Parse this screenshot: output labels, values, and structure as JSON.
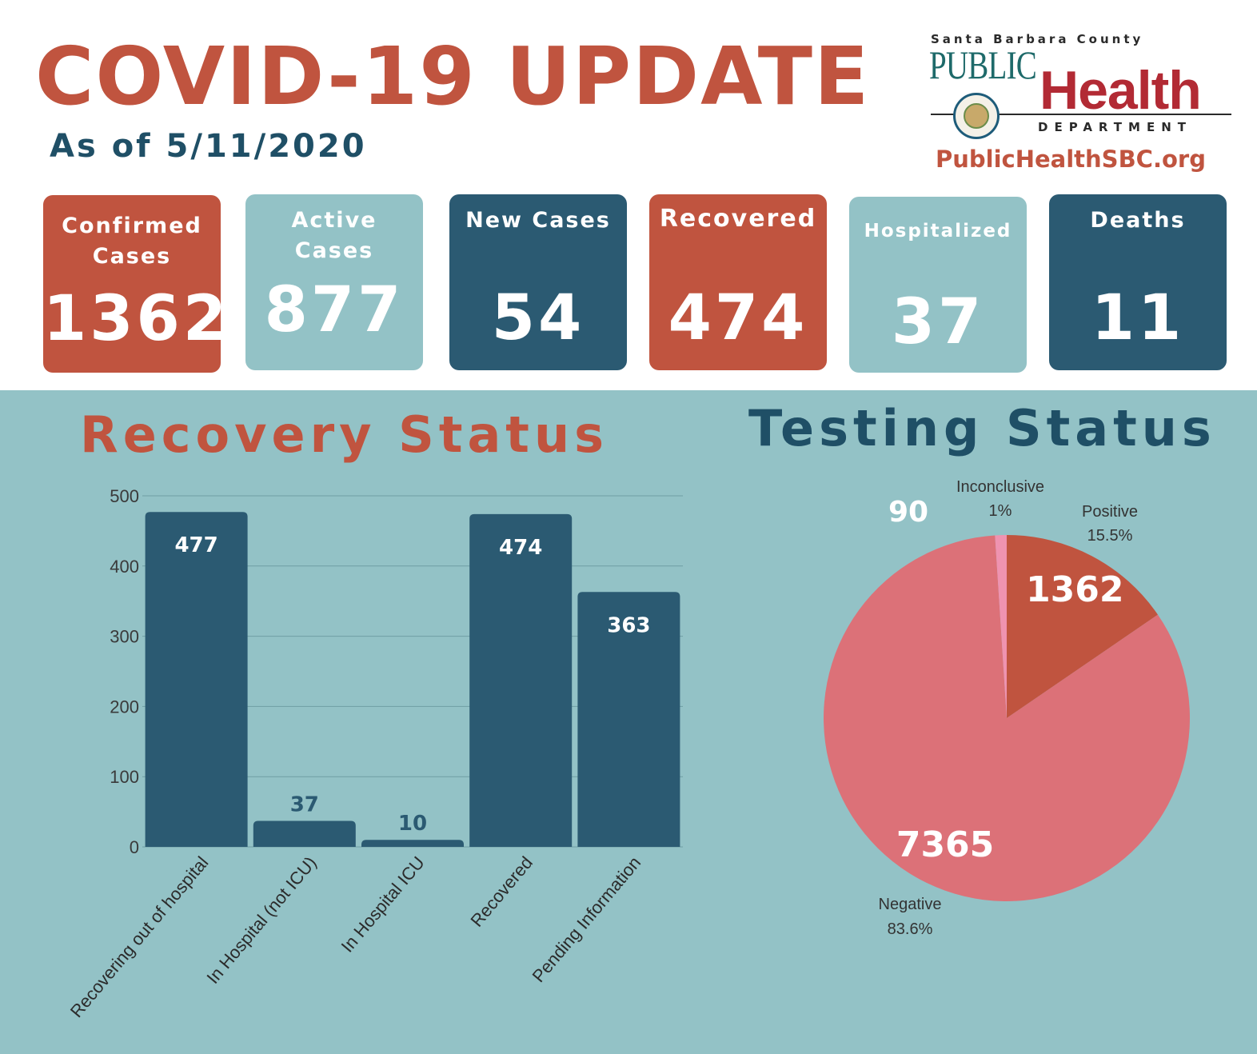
{
  "header": {
    "title": "COVID-19 UPDATE",
    "as_of": "As of 5/11/2020"
  },
  "logo": {
    "county": "Santa Barbara County",
    "public": "PUBLIC",
    "health": "Health",
    "department": "DEPARTMENT",
    "url": "PublicHealthSBC.org"
  },
  "stats": [
    {
      "label": "Confirmed\nCases",
      "value": "1362"
    },
    {
      "label": "Active\nCases",
      "value": "877"
    },
    {
      "label": "New Cases",
      "value": "54"
    },
    {
      "label": "Recovered",
      "value": "474"
    },
    {
      "label": "Hospitalized",
      "value": "37"
    },
    {
      "label": "Deaths",
      "value": "11"
    }
  ],
  "colors": {
    "brand_red": "#c0543f",
    "brand_teal_dark": "#2b5a72",
    "brand_teal_light": "#93c2c6",
    "pie_negative": "#dc7178",
    "pie_inconclusive": "#ef93b0",
    "pie_positive": "#c0543f"
  },
  "sections": {
    "recovery_title": "Recovery Status",
    "testing_title": "Testing Status"
  },
  "chart_data": [
    {
      "type": "bar",
      "title": "Recovery Status",
      "categories": [
        "Recovering out of hospital",
        "In Hospital (not ICU)",
        "In Hospital ICU",
        "Recovered",
        "Pending Information"
      ],
      "values": [
        477,
        37,
        10,
        474,
        363
      ],
      "ylim": [
        0,
        500
      ],
      "yticks": [
        0,
        100,
        200,
        300,
        400,
        500
      ],
      "grid": true,
      "xlabel": "",
      "ylabel": ""
    },
    {
      "type": "pie",
      "title": "Testing Status",
      "slices": [
        {
          "label": "Positive",
          "percent": "15.5%",
          "value": 1362
        },
        {
          "label": "Negative",
          "percent": "83.6%",
          "value": 7365
        },
        {
          "label": "Inconclusive",
          "percent": "1%",
          "value": 90
        }
      ]
    }
  ]
}
